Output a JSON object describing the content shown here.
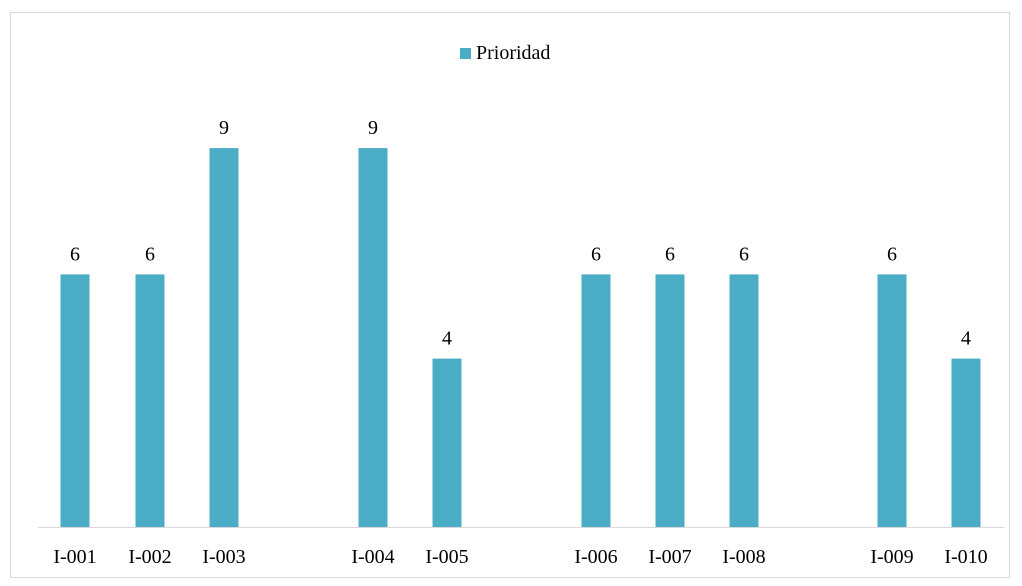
{
  "chart_data": {
    "type": "bar",
    "categories": [
      "I-001",
      "I-002",
      "I-003",
      "I-004",
      "I-005",
      "I-006",
      "I-007",
      "I-008",
      "I-009",
      "I-010"
    ],
    "series": [
      {
        "name": "Prioridad",
        "values": [
          6,
          6,
          9,
          9,
          4,
          6,
          6,
          6,
          6,
          4
        ],
        "color": "#4bacc6"
      }
    ],
    "data_labels": true,
    "legend": "top-center",
    "grid": false,
    "ylim": [
      0,
      10
    ]
  }
}
